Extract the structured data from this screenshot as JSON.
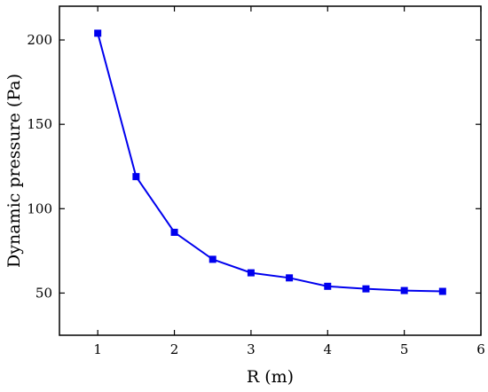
{
  "chart_data": {
    "type": "line",
    "title": "",
    "xlabel": "R (m)",
    "ylabel": "Dynamic pressure (Pa)",
    "xlim": [
      0.5,
      6
    ],
    "ylim": [
      25,
      220
    ],
    "xticks": [
      1,
      2,
      3,
      4,
      5,
      6
    ],
    "yticks": [
      50,
      100,
      150,
      200
    ],
    "grid": false,
    "legend": "none",
    "series": [
      {
        "color": "#0000ee",
        "marker": "square",
        "x": [
          1.0,
          1.5,
          2.0,
          2.5,
          3.0,
          3.5,
          4.0,
          4.5,
          5.0,
          5.5
        ],
        "y": [
          204,
          119,
          86,
          70,
          62,
          59,
          54,
          52.5,
          51.5,
          51
        ]
      }
    ]
  }
}
